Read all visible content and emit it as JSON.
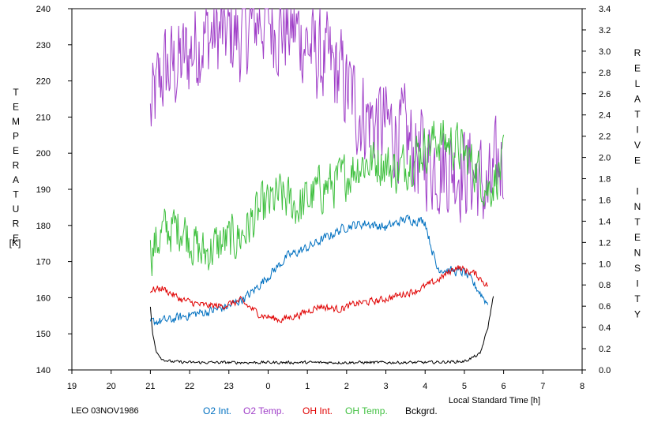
{
  "chart_data": {
    "type": "line",
    "title": "",
    "xlabel": "Local Standard Time [h]",
    "ylabel_left": "TEMPERATURE",
    "ylabel_left_unit": "[K]",
    "ylabel_right": "RELATIVE INTENSITY",
    "x_ticks": [
      "19",
      "20",
      "21",
      "22",
      "23",
      "0",
      "1",
      "2",
      "3",
      "4",
      "5",
      "6",
      "7",
      "8"
    ],
    "x_range": [
      19,
      32
    ],
    "y_left_ticks": [
      "240",
      "230",
      "220",
      "210",
      "200",
      "190",
      "180",
      "170",
      "160",
      "150",
      "140"
    ],
    "y_left_range": [
      140,
      240
    ],
    "y_right_ticks": [
      "3.4",
      "3.2",
      "3.0",
      "2.8",
      "2.6",
      "2.4",
      "2.2",
      "2.0",
      "1.8",
      "1.6",
      "1.4",
      "1.2",
      "1.0",
      "0.8",
      "0.6",
      "0.4",
      "0.2",
      "0.0"
    ],
    "y_right_range": [
      0.0,
      3.4
    ],
    "grid": false,
    "footer_label": "LEO 03NOV1986",
    "legend": [
      {
        "name": "O2 Int.",
        "color": "#0070c0"
      },
      {
        "name": "O2 Temp.",
        "color": "#a040c8"
      },
      {
        "name": "OH Int.",
        "color": "#e00000"
      },
      {
        "name": "OH Temp.",
        "color": "#40c040"
      },
      {
        "name": "Bckgrd.",
        "color": "#000000"
      }
    ],
    "series": [
      {
        "name": "O2 Temp.",
        "axis": "left",
        "color": "#a040c8",
        "noise": 12,
        "x": [
          21.0,
          21.3,
          21.8,
          22.3,
          22.8,
          23.3,
          23.8,
          24.3,
          24.8,
          25.3,
          25.8,
          26.3,
          26.8,
          27.3,
          27.8,
          28.3,
          28.8,
          29.3,
          29.6,
          30.0
        ],
        "y": [
          210,
          222,
          225,
          232,
          233,
          232,
          238,
          235,
          233,
          226,
          222,
          212,
          208,
          206,
          200,
          197,
          196,
          194,
          188,
          200
        ]
      },
      {
        "name": "OH Temp.",
        "axis": "left",
        "color": "#40c040",
        "noise": 6,
        "x": [
          21.0,
          21.3,
          21.8,
          22.3,
          22.8,
          23.3,
          23.8,
          24.3,
          24.8,
          25.3,
          25.8,
          26.3,
          26.8,
          27.3,
          27.8,
          28.3,
          28.8,
          29.3,
          29.6,
          30.0
        ],
        "y": [
          172,
          178,
          180,
          172,
          175,
          177,
          184,
          188,
          185,
          190,
          192,
          197,
          198,
          195,
          200,
          204,
          202,
          196,
          190,
          197
        ]
      },
      {
        "name": "O2 Int.",
        "axis": "right",
        "color": "#0070c0",
        "noise": 0.04,
        "x": [
          21.0,
          21.5,
          22.0,
          22.5,
          23.0,
          23.5,
          24.0,
          24.5,
          25.0,
          25.5,
          26.0,
          26.5,
          27.0,
          27.5,
          28.0,
          28.1,
          28.3,
          28.7,
          29.0,
          29.3,
          29.6
        ],
        "y": [
          0.45,
          0.47,
          0.52,
          0.55,
          0.6,
          0.7,
          0.88,
          1.07,
          1.15,
          1.25,
          1.35,
          1.38,
          1.34,
          1.42,
          1.4,
          1.24,
          0.96,
          0.93,
          0.92,
          0.78,
          0.62
        ]
      },
      {
        "name": "OH Int.",
        "axis": "right",
        "color": "#e00000",
        "noise": 0.03,
        "x": [
          21.0,
          21.3,
          21.8,
          22.3,
          22.8,
          23.3,
          23.8,
          24.3,
          24.8,
          25.3,
          25.8,
          26.3,
          26.8,
          27.3,
          27.8,
          28.3,
          28.8,
          29.3,
          29.6
        ],
        "y": [
          0.75,
          0.77,
          0.66,
          0.61,
          0.6,
          0.65,
          0.52,
          0.47,
          0.52,
          0.6,
          0.57,
          0.63,
          0.65,
          0.7,
          0.75,
          0.84,
          0.97,
          0.9,
          0.79
        ]
      },
      {
        "name": "Bckgrd.",
        "axis": "right",
        "color": "#000000",
        "noise": 0.012,
        "x": [
          21.0,
          21.05,
          21.15,
          21.3,
          21.5,
          22.0,
          23.0,
          24.0,
          25.0,
          26.0,
          27.0,
          28.0,
          29.0,
          29.4,
          29.6,
          29.75
        ],
        "y": [
          0.6,
          0.35,
          0.18,
          0.1,
          0.08,
          0.07,
          0.07,
          0.07,
          0.07,
          0.07,
          0.07,
          0.07,
          0.08,
          0.15,
          0.4,
          0.72
        ]
      }
    ]
  }
}
